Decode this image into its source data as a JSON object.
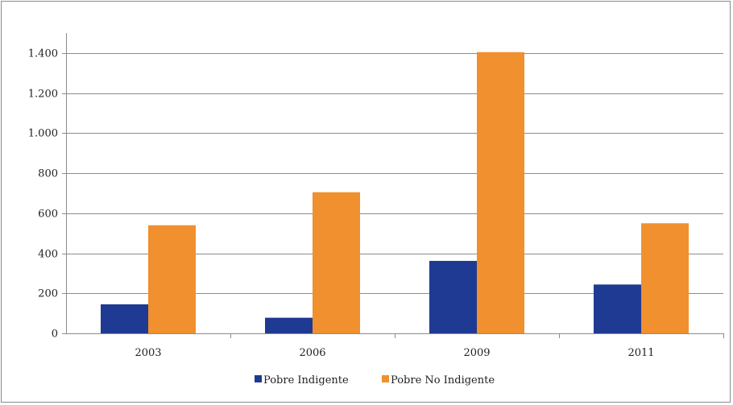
{
  "chart_data": {
    "type": "bar",
    "title": "",
    "xlabel": "",
    "ylabel": "",
    "categories": [
      "2003",
      "2006",
      "2009",
      "2011"
    ],
    "series": [
      {
        "name": "Pobre Indigente",
        "values": [
          145,
          78,
          362,
          244
        ],
        "color": "#1f3a93"
      },
      {
        "name": "Pobre No Indigente",
        "values": [
          540,
          705,
          1405,
          550
        ],
        "color": "#f0902e"
      }
    ],
    "ylim": [
      0,
      1400
    ],
    "yticks": [
      0,
      200,
      400,
      600,
      800,
      1000,
      1200,
      1400
    ],
    "ytick_labels": [
      "0",
      "200",
      "400",
      "600",
      "800",
      "1.000",
      "1.200",
      "1.400"
    ],
    "grid": true,
    "legend_position": "bottom-center"
  }
}
